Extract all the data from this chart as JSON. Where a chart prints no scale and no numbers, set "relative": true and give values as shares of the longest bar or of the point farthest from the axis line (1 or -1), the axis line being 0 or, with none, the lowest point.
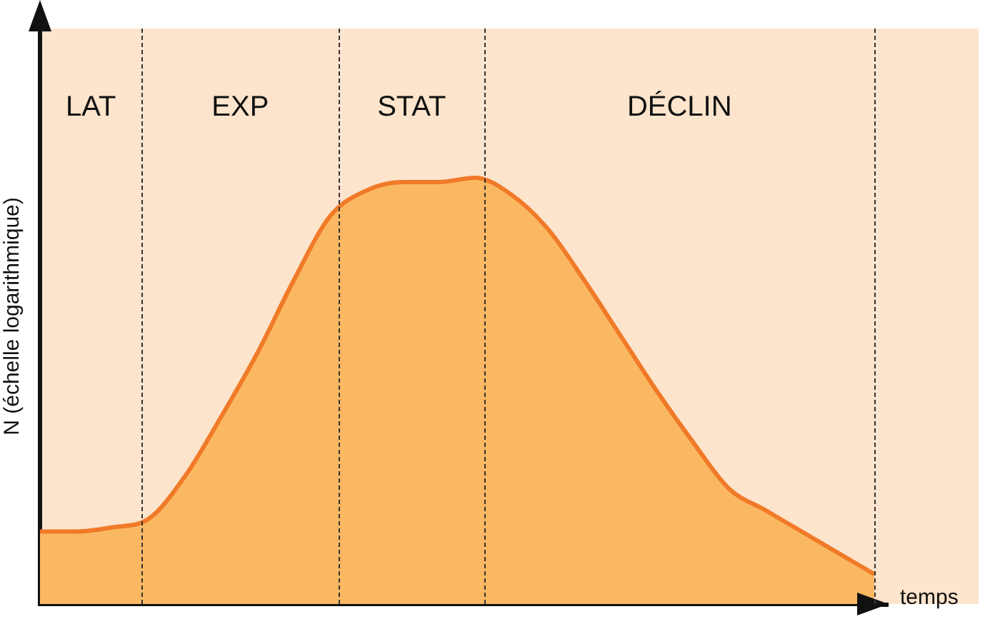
{
  "chart_data": {
    "type": "area",
    "relative": true,
    "xlabel": "temps",
    "ylabel": "N (échelle logarithmique)",
    "categories": [
      null,
      null,
      null,
      null,
      null,
      null,
      null,
      null,
      null,
      null,
      null,
      null,
      null,
      null,
      null,
      null,
      null,
      null,
      null,
      null,
      null,
      null,
      null,
      null
    ],
    "series": [
      {
        "color": "#f07a28",
        "values": [
          0.17,
          0.17,
          0.18,
          0.2,
          0.3,
          0.44,
          0.59,
          0.76,
          0.91,
          0.97,
          0.99,
          0.99,
          1,
          0.96,
          0.88,
          0.76,
          0.63,
          0.5,
          0.38,
          0.27,
          0.22,
          0.17,
          0.12,
          0.07
        ]
      }
    ],
    "annotations": [
      "LAT",
      "EXP",
      "STAT",
      "DÉCLIN"
    ]
  }
}
